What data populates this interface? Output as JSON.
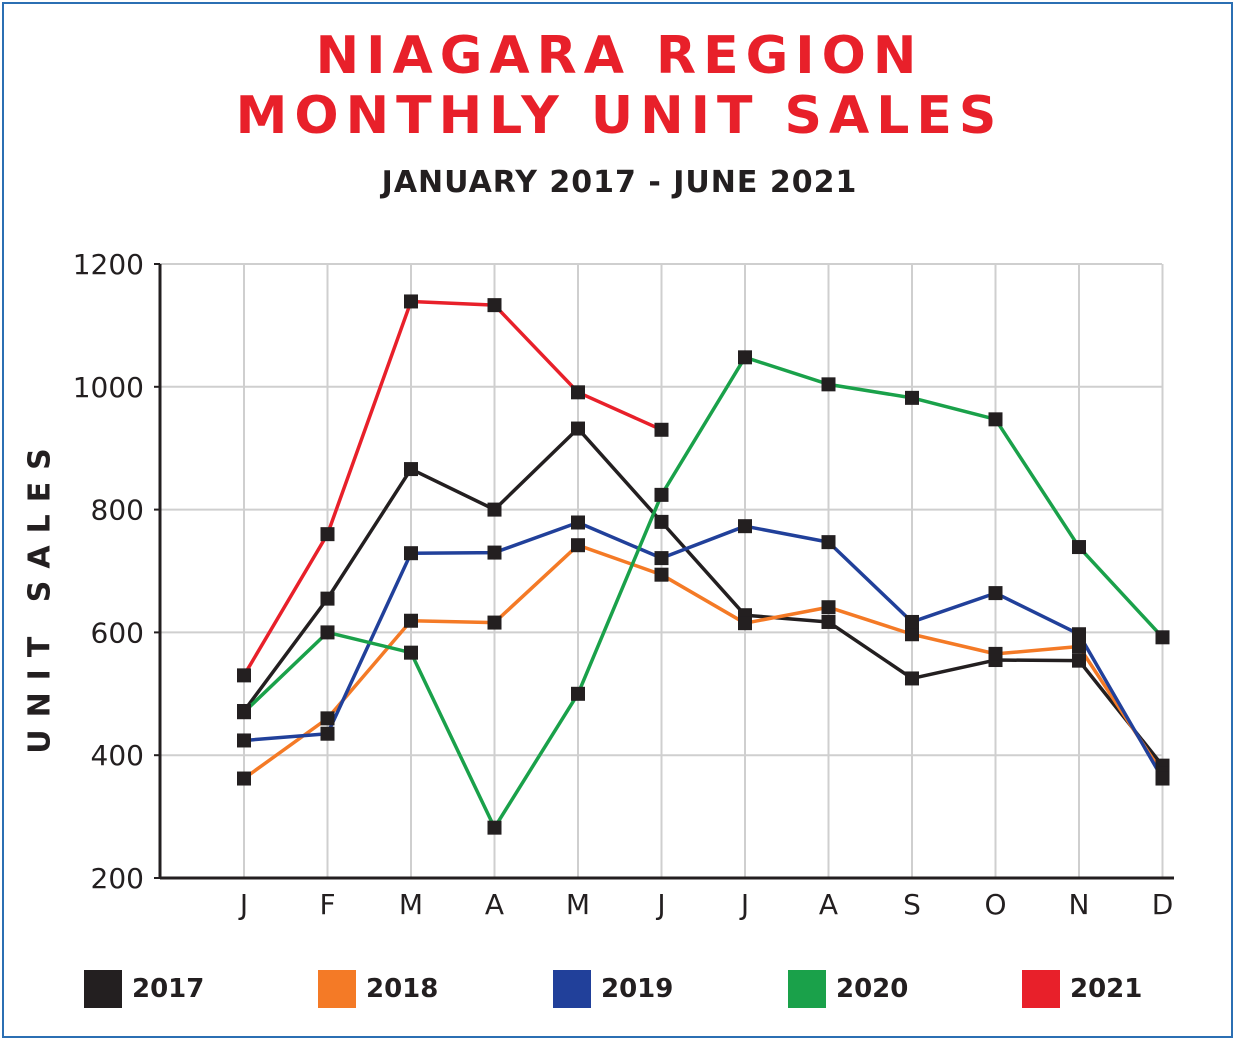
{
  "chart_data": {
    "type": "line",
    "title_line1": "NIAGARA REGION",
    "title_line2": "MONTHLY UNIT SALES",
    "subtitle": "JANUARY 2017 - JUNE 2021",
    "ylabel": "UNIT SALES",
    "xlabel": "",
    "categories": [
      "J",
      "F",
      "M",
      "A",
      "M",
      "J",
      "J",
      "A",
      "S",
      "O",
      "N",
      "D"
    ],
    "ylim": [
      200,
      1200
    ],
    "yticks": [
      200,
      400,
      600,
      800,
      1000,
      1200
    ],
    "grid": true,
    "legend_position": "bottom",
    "series": [
      {
        "name": "2017",
        "color": "#231f20",
        "values": [
          472,
          655,
          866,
          800,
          932,
          780,
          628,
          617,
          525,
          555,
          554,
          383
        ]
      },
      {
        "name": "2018",
        "color": "#f47a26",
        "values": [
          362,
          460,
          619,
          616,
          742,
          694,
          615,
          641,
          597,
          565,
          577,
          370
        ]
      },
      {
        "name": "2019",
        "color": "#21409a",
        "values": [
          424,
          435,
          729,
          730,
          779,
          721,
          773,
          747,
          617,
          664,
          597,
          362
        ]
      },
      {
        "name": "2020",
        "color": "#1aa14a",
        "values": [
          470,
          600,
          567,
          282,
          500,
          824,
          1048,
          1004,
          982,
          947,
          739,
          592
        ]
      },
      {
        "name": "2021",
        "color": "#e8202a",
        "values": [
          530,
          760,
          1139,
          1133,
          991,
          930,
          null,
          null,
          null,
          null,
          null,
          null
        ]
      }
    ]
  }
}
